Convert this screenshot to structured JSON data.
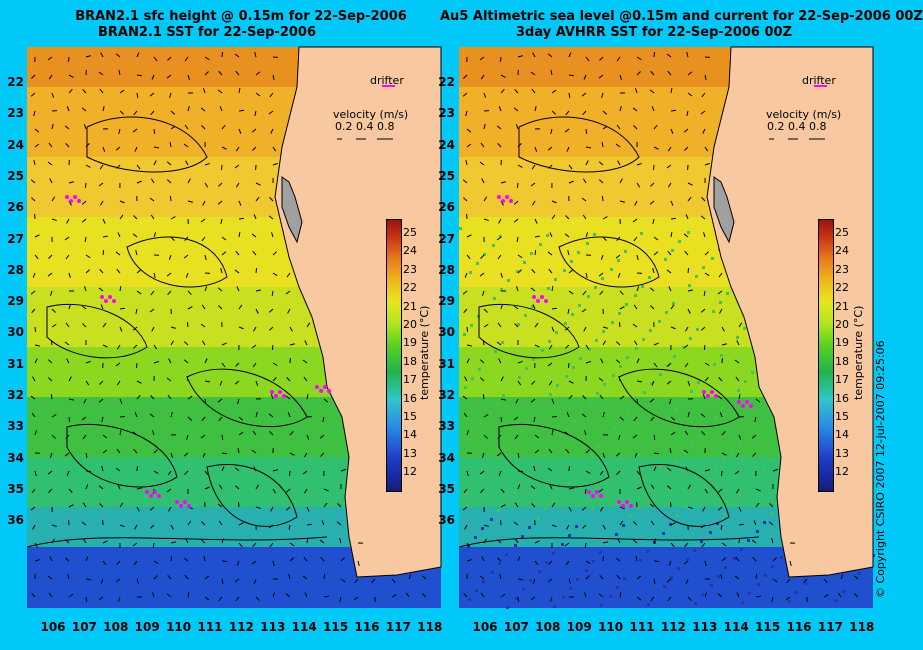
{
  "left_panel": {
    "title_line1": "BRAN2.1 sfc height @ 0.15m for 22-Sep-2006",
    "title_line2": "BRAN2.1 SST for 22-Sep-2006"
  },
  "right_panel": {
    "title_line1": "Au5 Altimetric sea level  @0.15m and current for 22-Sep-2006 00Z",
    "title_line2": "3day AVHRR SST for 22-Sep-2006 00Z"
  },
  "legend": {
    "drifter_label": "drifter",
    "velocity_label": "velocity (m/s)",
    "velocity_values": "0.2 0.4 0.8"
  },
  "colorbar": {
    "title": "temperature (°C)",
    "ticks": [
      "25",
      "24",
      "23",
      "22",
      "21",
      "20",
      "19",
      "18",
      "17",
      "16",
      "15",
      "14",
      "13",
      "12"
    ]
  },
  "axes": {
    "y_ticks": [
      "22",
      "23",
      "24",
      "25",
      "26",
      "27",
      "28",
      "29",
      "30",
      "31",
      "32",
      "33",
      "34",
      "35",
      "36"
    ],
    "x_ticks": [
      "106",
      "107",
      "108",
      "109",
      "110",
      "111",
      "112",
      "113",
      "114",
      "115",
      "116",
      "117",
      "118"
    ]
  },
  "copyright": "© Copyright CSIRO 2007    12-Jul-2007 09:25:06",
  "colors": {
    "background": "#00c8f8",
    "land": "#f8c8a0",
    "drifter": "#ff00ff"
  }
}
